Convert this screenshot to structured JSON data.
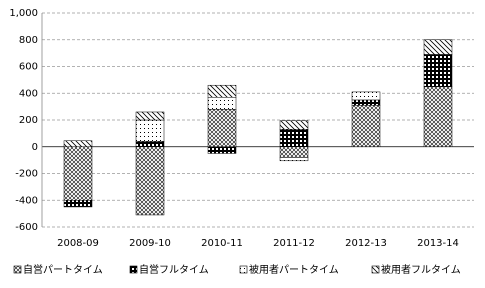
{
  "chart_data": {
    "type": "bar",
    "stacked": true,
    "categories": [
      "2008-09",
      "2009-10",
      "2010-11",
      "2011-12",
      "2012-13",
      "2013-14"
    ],
    "series": [
      {
        "name": "自営パートタイム",
        "color": "#000000",
        "values": [
          -400,
          -510,
          280,
          -80,
          310,
          450
        ]
      },
      {
        "name": "自営フルタイム",
        "color": "#000000",
        "values": [
          -50,
          40,
          -50,
          130,
          40,
          240
        ]
      },
      {
        "name": "被用者パートタイム",
        "color": "#000000",
        "values": [
          0,
          160,
          90,
          -25,
          60,
          0
        ]
      },
      {
        "name": "被用者フルタイム",
        "color": "#000000",
        "values": [
          45,
          60,
          90,
          65,
          0,
          110
        ]
      }
    ],
    "ylim": [
      -600,
      1000
    ],
    "yticks": [
      -600,
      -400,
      -200,
      0,
      200,
      400,
      600,
      800,
      {
        "value": 1000,
        "label": "1,000"
      }
    ],
    "grid": true,
    "legend": "bottom"
  }
}
